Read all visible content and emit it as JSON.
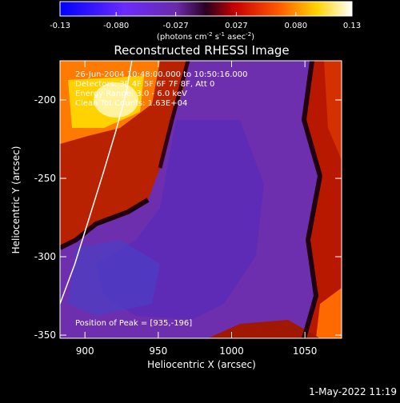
{
  "colorbar": {
    "ticks": [
      "-0.13",
      "-0.080",
      "-0.027",
      "0.027",
      "0.080",
      "0.13"
    ],
    "unit_label": "(photons cm",
    "unit_exp1": "-2",
    "unit_mid1": " s",
    "unit_exp2": "-1",
    "unit_mid2": " asec",
    "unit_exp3": "-2",
    "unit_end": ")"
  },
  "chart_data": {
    "type": "heatmap",
    "title": "Reconstructed RHESSI Image",
    "xlabel": "Heliocentric X (arcsec)",
    "ylabel": "Heliocentric Y (arcsec)",
    "xlim": [
      883,
      1075
    ],
    "ylim": [
      -352,
      -175
    ],
    "xticks": [
      900,
      950,
      1000,
      1050
    ],
    "yticks": [
      -200,
      -250,
      -300,
      -350
    ],
    "zlim": [
      -0.13,
      0.13
    ],
    "colormap": "rainbow-blue-purple-red-yellow-white",
    "annotations": [
      "26-Jun-2004 10:48:00.000 to 10:50:16.000",
      "Detectors: 3F 4F 5F 6F 7F 8F, Att 0",
      "Energy Range: 3.0 - 6.0 keV",
      "Clean     Tot Counts: 1.63E+04"
    ],
    "peak_label": "Position of Peak = [935,-196]",
    "peak": [
      935,
      -196
    ],
    "limb_curve": [
      [
        883,
        -330
      ],
      [
        893,
        -305
      ],
      [
        903,
        -275
      ],
      [
        913,
        -245
      ],
      [
        921,
        -220
      ],
      [
        928,
        -196
      ],
      [
        932,
        -175
      ]
    ]
  },
  "footer": {
    "date": "1-May-2022 11:19"
  }
}
